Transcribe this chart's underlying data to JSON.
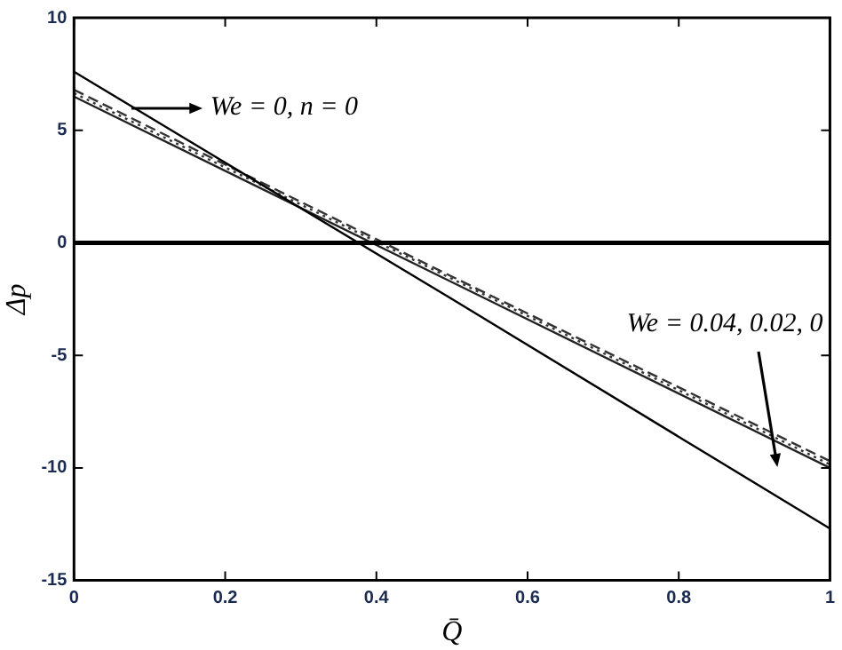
{
  "chart_data": {
    "type": "line",
    "xlabel": "Q̄",
    "ylabel": "Δp",
    "x": [
      0,
      0.5,
      1
    ],
    "xlim": [
      0,
      1
    ],
    "xticks": [
      0,
      0.2,
      0.4,
      0.6,
      0.8,
      1
    ],
    "ylim": [
      -15,
      10
    ],
    "yticks": [
      -15,
      -10,
      -5,
      0,
      5,
      10
    ],
    "grid": false,
    "legend": false,
    "marker": "none",
    "series": [
      {
        "color": "#000000",
        "values": [
          7.6,
          -2.5,
          -12.7
        ],
        "line_style": "solid"
      },
      {
        "color": "#333333",
        "values": [
          6.8,
          -1.5,
          -9.7
        ],
        "line_style": "dashed"
      },
      {
        "color": "#333333",
        "values": [
          6.65,
          -1.6,
          -9.85
        ],
        "line_style": "dotted"
      },
      {
        "color": "#222222",
        "values": [
          6.5,
          -1.75,
          -10.0
        ],
        "line_style": "solid"
      }
    ],
    "ref_lines": [
      {
        "axis": "y",
        "value": 0,
        "color": "#000000",
        "line_style": "solid"
      }
    ],
    "annotations": [
      {
        "text": "We = 0, n = 0",
        "x": 0.077,
        "y": 6.0
      },
      "We = 0.04, 0.02, 0"
    ]
  }
}
